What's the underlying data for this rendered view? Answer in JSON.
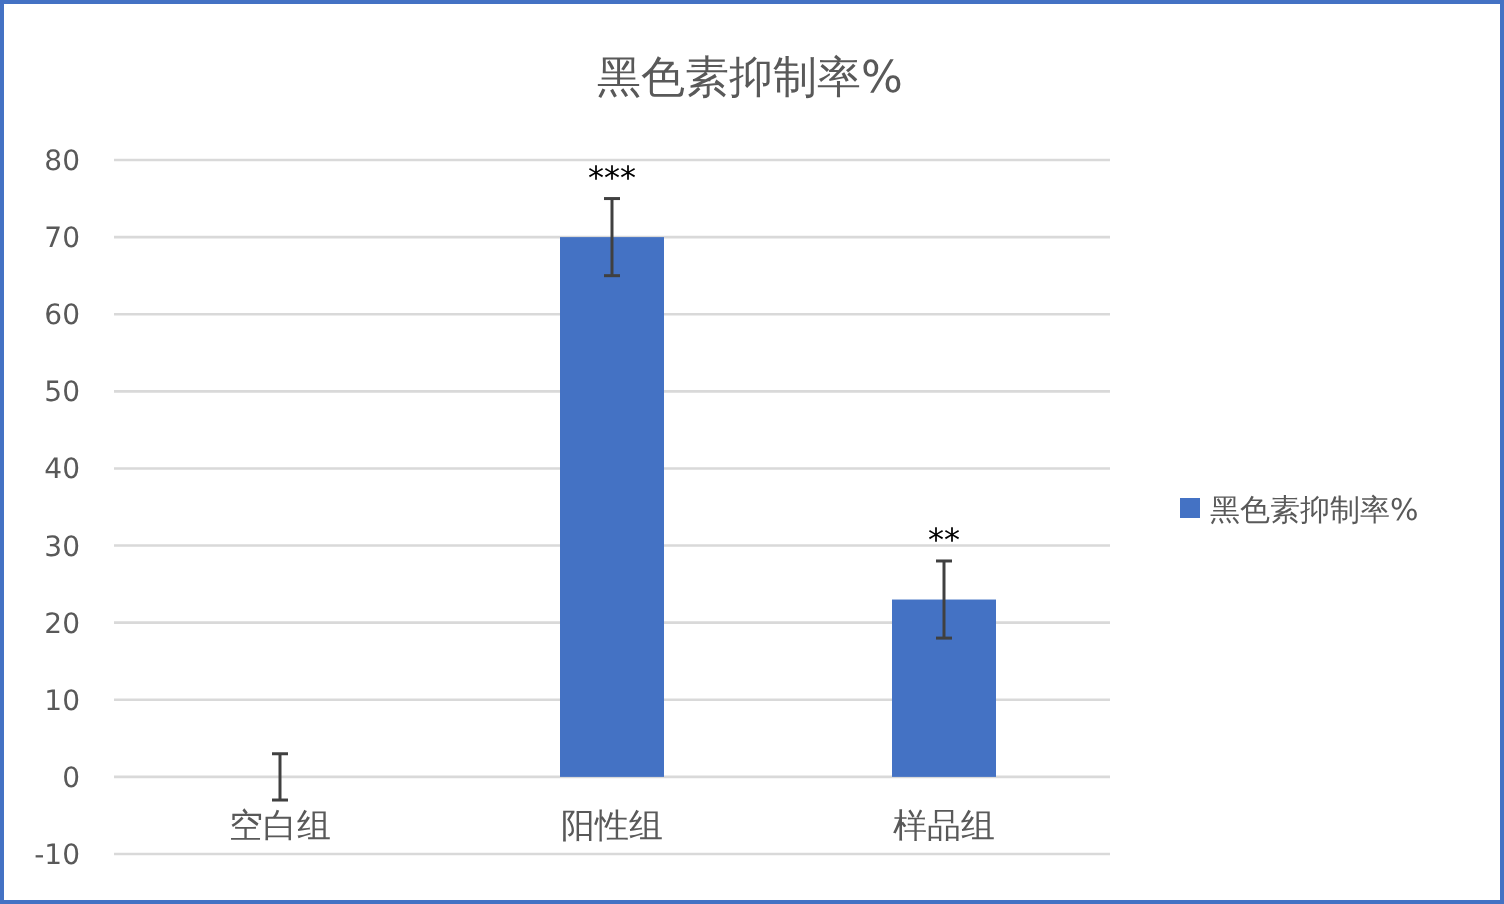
{
  "chart_data": {
    "type": "bar",
    "title": "黑色素抑制率%",
    "categories": [
      "空白组",
      "阳性组",
      "样品组"
    ],
    "series": [
      {
        "name": "黑色素抑制率%",
        "color": "#4472c4",
        "values": [
          0,
          70,
          23
        ],
        "errors": [
          3,
          5,
          5
        ]
      }
    ],
    "ylim": [
      -10,
      80
    ],
    "yticks": [
      -10,
      0,
      10,
      20,
      30,
      40,
      50,
      60,
      70,
      80
    ],
    "grid": "y",
    "legend": "right",
    "annotations": [
      {
        "text": "***",
        "x": "阳性组",
        "y": 75
      },
      {
        "text": "**",
        "x": "样品组",
        "y": 28
      }
    ]
  }
}
